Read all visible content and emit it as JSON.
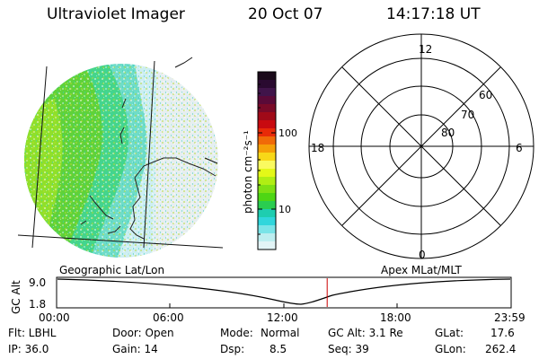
{
  "header": {
    "title": "Ultraviolet Imager",
    "date": "20 Oct 07",
    "time": "14:17:18 UT"
  },
  "colorbar": {
    "label": "photon cm⁻²s⁻¹",
    "ticks": [
      "100",
      "10"
    ],
    "colors": [
      "#1a0a1a",
      "#2a0a30",
      "#40144a",
      "#5a0a38",
      "#7a0a28",
      "#a00a18",
      "#c80a10",
      "#e82a08",
      "#f06a08",
      "#f5a008",
      "#f8d818",
      "#fafa60",
      "#e4f818",
      "#b0ee14",
      "#7ee014",
      "#4ed614",
      "#2acd50",
      "#1ecdb0",
      "#30d6dc",
      "#7ae4e8",
      "#bdeef0",
      "#e2f4f6"
    ]
  },
  "polar": {
    "labels_clock": [
      "12",
      "18",
      "6",
      "0"
    ],
    "labels_lat": [
      "60",
      "70",
      "80"
    ]
  },
  "timeline": {
    "left_label": "Geographic Lat/Lon",
    "right_label": "Apex  MLat/MLT",
    "y_axis_label": "GC Alt",
    "y_ticks": [
      "9.0",
      "1.8"
    ],
    "x_ticks": [
      "00:00",
      "06:00",
      "12:00",
      "18:00",
      "23:59"
    ],
    "marker_time_hours": 14.288,
    "marker_color": "#cc0000"
  },
  "info": {
    "flt": "Flt: LBHL",
    "ip": "IP: 36.0",
    "door": "Door: Open",
    "gain": "Gain: 14",
    "mode_label": "Mode:",
    "mode_value": "Normal",
    "dsp_label": "Dsp:",
    "dsp_value": "8.5",
    "gcalt": "GC Alt: 3.1 Re",
    "seq": "Seq: 39",
    "glat_label": "GLat:",
    "glat_value": "17.6",
    "glon_label": "GLon:",
    "glon_value": "262.4"
  }
}
